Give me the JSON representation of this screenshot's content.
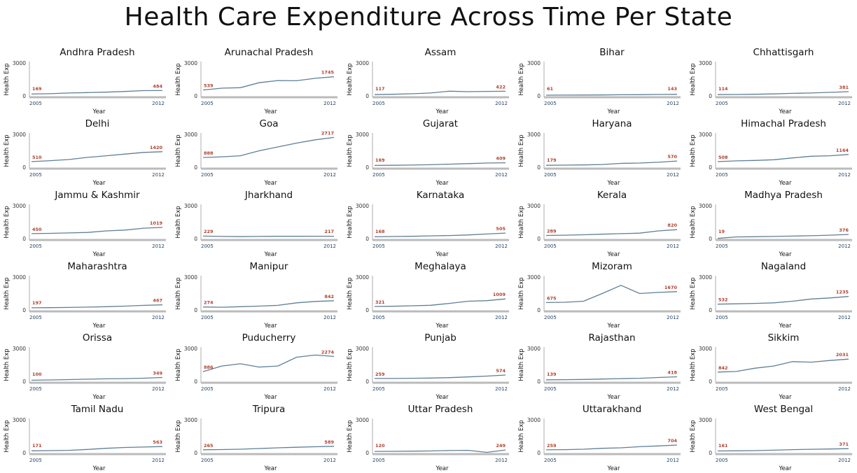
{
  "title": "Health Care Expenditure Across Time Per State",
  "chart_data": {
    "type": "line",
    "title": "Health Care Expenditure Across Time Per State",
    "xlabel": "Year",
    "ylabel": "Health Exp",
    "x": [
      2005,
      2006,
      2007,
      2008,
      2009,
      2010,
      2011,
      2012
    ],
    "xticks": [
      "2005",
      "2012"
    ],
    "yticks": [
      "0",
      "3000"
    ],
    "ylim": [
      0,
      3000
    ],
    "grid": false,
    "colors": {
      "line": "#5f7f95",
      "label": "#b0412e",
      "axis": "#bbbbbb"
    },
    "panels": [
      {
        "name": "Andhra Pradesh",
        "values": [
          169,
          200,
          260,
          300,
          340,
          400,
          480,
          484
        ],
        "first_label": "169",
        "last_label": "484"
      },
      {
        "name": "Arunachal Pradesh",
        "values": [
          539,
          700,
          750,
          1200,
          1400,
          1380,
          1600,
          1745
        ],
        "first_label": "539",
        "last_label": "1745"
      },
      {
        "name": "Assam",
        "values": [
          117,
          150,
          190,
          260,
          430,
          380,
          410,
          422
        ],
        "first_label": "117",
        "last_label": "422"
      },
      {
        "name": "Bihar",
        "values": [
          61,
          70,
          75,
          85,
          100,
          110,
          125,
          143
        ],
        "first_label": "61",
        "last_label": "143"
      },
      {
        "name": "Chhattisgarh",
        "values": [
          114,
          130,
          150,
          180,
          230,
          260,
          320,
          381
        ],
        "first_label": "114",
        "last_label": "381"
      },
      {
        "name": "Delhi",
        "values": [
          510,
          600,
          700,
          900,
          1050,
          1200,
          1350,
          1420
        ],
        "first_label": "510",
        "last_label": "1420"
      },
      {
        "name": "Goa",
        "values": [
          888,
          950,
          1050,
          1500,
          1850,
          2200,
          2500,
          2717
        ],
        "first_label": "888",
        "last_label": "2717"
      },
      {
        "name": "Gujarat",
        "values": [
          169,
          180,
          200,
          230,
          280,
          330,
          380,
          409
        ],
        "first_label": "169",
        "last_label": "409"
      },
      {
        "name": "Haryana",
        "values": [
          179,
          190,
          210,
          250,
          350,
          380,
          450,
          570
        ],
        "first_label": "179",
        "last_label": "570"
      },
      {
        "name": "Himachal Pradesh",
        "values": [
          508,
          580,
          620,
          680,
          850,
          1000,
          1050,
          1164
        ],
        "first_label": "508",
        "last_label": "1164"
      },
      {
        "name": "Jammu & Kashmir",
        "values": [
          450,
          480,
          520,
          560,
          700,
          780,
          950,
          1019
        ],
        "first_label": "450",
        "last_label": "1019"
      },
      {
        "name": "Jharkhand",
        "values": [
          229,
          200,
          180,
          200,
          210,
          210,
          215,
          217
        ],
        "first_label": "229",
        "last_label": "217"
      },
      {
        "name": "Karnataka",
        "values": [
          168,
          190,
          210,
          250,
          280,
          330,
          420,
          505
        ],
        "first_label": "168",
        "last_label": "505"
      },
      {
        "name": "Kerala",
        "values": [
          289,
          310,
          350,
          400,
          450,
          500,
          700,
          820
        ],
        "first_label": "289",
        "last_label": "820"
      },
      {
        "name": "Madhya Pradesh",
        "values": [
          19,
          150,
          170,
          200,
          230,
          260,
          310,
          376
        ],
        "first_label": "19",
        "last_label": "376"
      },
      {
        "name": "Maharashtra",
        "values": [
          197,
          210,
          230,
          260,
          300,
          350,
          420,
          467
        ],
        "first_label": "197",
        "last_label": "467"
      },
      {
        "name": "Manipur",
        "values": [
          274,
          250,
          300,
          350,
          420,
          650,
          780,
          842
        ],
        "first_label": "274",
        "last_label": "842"
      },
      {
        "name": "Meghalaya",
        "values": [
          321,
          340,
          380,
          430,
          600,
          800,
          850,
          1009
        ],
        "first_label": "321",
        "last_label": "1009"
      },
      {
        "name": "Mizoram",
        "values": [
          675,
          700,
          800,
          1500,
          2250,
          1500,
          1600,
          1670
        ],
        "first_label": "675",
        "last_label": "1670"
      },
      {
        "name": "Nagaland",
        "values": [
          532,
          560,
          600,
          650,
          800,
          1000,
          1100,
          1235
        ],
        "first_label": "532",
        "last_label": "1235"
      },
      {
        "name": "Orissa",
        "values": [
          100,
          130,
          160,
          200,
          230,
          250,
          290,
          349
        ],
        "first_label": "100",
        "last_label": "349"
      },
      {
        "name": "Puducherry",
        "values": [
          886,
          1400,
          1600,
          1300,
          1400,
          2200,
          2400,
          2274
        ],
        "first_label": "886",
        "last_label": "2274"
      },
      {
        "name": "Punjab",
        "values": [
          259,
          260,
          280,
          300,
          340,
          400,
          480,
          574
        ],
        "first_label": "259",
        "last_label": "574"
      },
      {
        "name": "Rajasthan",
        "values": [
          139,
          150,
          170,
          210,
          250,
          280,
          350,
          418
        ],
        "first_label": "139",
        "last_label": "418"
      },
      {
        "name": "Sikkim",
        "values": [
          842,
          900,
          1200,
          1400,
          1800,
          1750,
          1900,
          2031
        ],
        "first_label": "842",
        "last_label": "2031"
      },
      {
        "name": "Tamil Nadu",
        "values": [
          171,
          190,
          220,
          300,
          400,
          480,
          520,
          563
        ],
        "first_label": "171",
        "last_label": "563"
      },
      {
        "name": "Tripura",
        "values": [
          265,
          290,
          320,
          380,
          450,
          500,
          540,
          589
        ],
        "first_label": "265",
        "last_label": "589"
      },
      {
        "name": "Uttar Pradesh",
        "values": [
          120,
          130,
          140,
          160,
          200,
          220,
          30,
          249
        ],
        "first_label": "120",
        "last_label": "249"
      },
      {
        "name": "Uttarakhand",
        "values": [
          259,
          280,
          320,
          400,
          450,
          550,
          620,
          704
        ],
        "first_label": "259",
        "last_label": "704"
      },
      {
        "name": "West Bengal",
        "values": [
          161,
          170,
          190,
          230,
          280,
          310,
          340,
          371
        ],
        "first_label": "161",
        "last_label": "371"
      }
    ]
  }
}
